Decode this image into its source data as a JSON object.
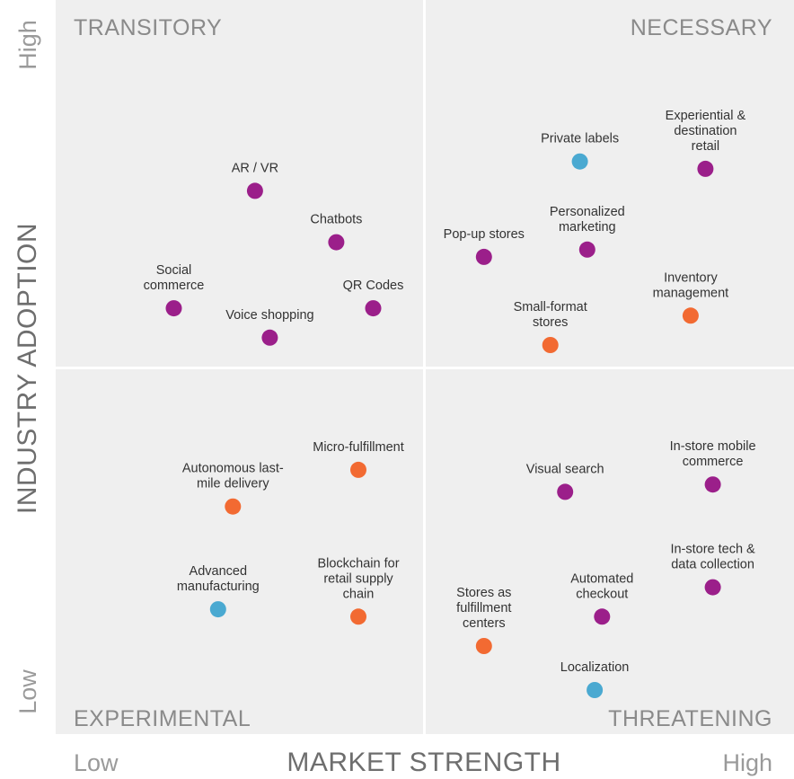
{
  "colors": {
    "purple": "#9b1f8a",
    "orange": "#f26a32",
    "blue": "#4aa9d1"
  },
  "quadrants": {
    "top_left": "TRANSITORY",
    "top_right": "NECESSARY",
    "bottom_left": "EXPERIMENTAL",
    "bottom_right": "THREATENING"
  },
  "chart_data": {
    "type": "scatter",
    "title": "",
    "xlabel": "MARKET STRENGTH",
    "ylabel": "INDUSTRY ADOPTION",
    "x_ticks": {
      "low": "Low",
      "high": "High"
    },
    "y_ticks": {
      "low": "Low",
      "high": "High"
    },
    "xlim": [
      0,
      100
    ],
    "ylim": [
      0,
      100
    ],
    "grid": false,
    "points": [
      {
        "label": [
          "Experiential &",
          "destination",
          "retail"
        ],
        "x": 88,
        "y": 77,
        "color": "purple"
      },
      {
        "label": [
          "Private labels"
        ],
        "x": 71,
        "y": 78,
        "color": "blue"
      },
      {
        "label": [
          "AR / VR"
        ],
        "x": 27,
        "y": 74,
        "color": "purple"
      },
      {
        "label": [
          "Chatbots"
        ],
        "x": 38,
        "y": 67,
        "color": "purple"
      },
      {
        "label": [
          "Pop-up stores"
        ],
        "x": 58,
        "y": 65,
        "color": "purple"
      },
      {
        "label": [
          "Personalized",
          "marketing"
        ],
        "x": 72,
        "y": 66,
        "color": "purple"
      },
      {
        "label": [
          "Inventory",
          "management"
        ],
        "x": 86,
        "y": 57,
        "color": "orange"
      },
      {
        "label": [
          "Social",
          "commerce"
        ],
        "x": 16,
        "y": 58,
        "color": "purple"
      },
      {
        "label": [
          "QR Codes"
        ],
        "x": 43,
        "y": 58,
        "color": "purple"
      },
      {
        "label": [
          "Voice shopping"
        ],
        "x": 29,
        "y": 54,
        "color": "purple"
      },
      {
        "label": [
          "Small-format",
          "stores"
        ],
        "x": 67,
        "y": 53,
        "color": "orange"
      },
      {
        "label": [
          "Micro-fulfillment"
        ],
        "x": 41,
        "y": 36,
        "color": "orange"
      },
      {
        "label": [
          "Visual search"
        ],
        "x": 69,
        "y": 33,
        "color": "purple"
      },
      {
        "label": [
          "In-store mobile",
          "commerce"
        ],
        "x": 89,
        "y": 34,
        "color": "purple"
      },
      {
        "label": [
          "Autonomous last-",
          "mile delivery"
        ],
        "x": 24,
        "y": 31,
        "color": "orange"
      },
      {
        "label": [
          "In-store tech &",
          "data collection"
        ],
        "x": 89,
        "y": 20,
        "color": "purple"
      },
      {
        "label": [
          "Advanced",
          "manufacturing"
        ],
        "x": 22,
        "y": 17,
        "color": "blue"
      },
      {
        "label": [
          "Blockchain for",
          "retail supply",
          "chain"
        ],
        "x": 41,
        "y": 16,
        "color": "orange"
      },
      {
        "label": [
          "Automated",
          "checkout"
        ],
        "x": 74,
        "y": 16,
        "color": "purple"
      },
      {
        "label": [
          "Stores as",
          "fulfillment",
          "centers"
        ],
        "x": 58,
        "y": 12,
        "color": "orange"
      },
      {
        "label": [
          "Localization"
        ],
        "x": 73,
        "y": 6,
        "color": "blue"
      }
    ]
  }
}
